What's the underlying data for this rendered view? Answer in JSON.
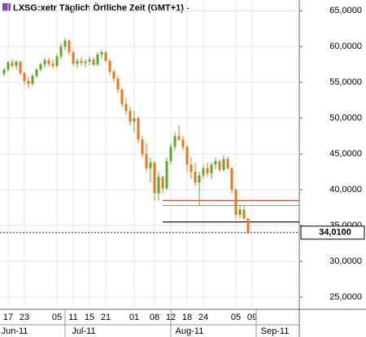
{
  "chart_data": {
    "type": "candlestick",
    "title": "LXSG:xetr Täglich Örtliche Zeit (GMT+1)  -",
    "up_color": "#5aa832",
    "down_color": "#e8761b",
    "ylim": [
      23.3,
      66.5
    ],
    "yticks": [
      {
        "value": 25,
        "label": "25,0000"
      },
      {
        "value": 30,
        "label": "30,0000"
      },
      {
        "value": 35,
        "label": "35,0000"
      },
      {
        "value": 40,
        "label": "40,0000"
      },
      {
        "value": 45,
        "label": "45,0000"
      },
      {
        "value": 50,
        "label": "50,0000"
      },
      {
        "value": 55,
        "label": "55,0000"
      },
      {
        "value": 60,
        "label": "60,0000"
      },
      {
        "value": 65,
        "label": "65,0000"
      }
    ],
    "grid": true,
    "categories": [
      null,
      "17",
      null,
      null,
      null,
      "23",
      null,
      null,
      null,
      null,
      null,
      null,
      null,
      "05",
      null,
      null,
      null,
      "11",
      null,
      null,
      null,
      "15",
      null,
      null,
      null,
      "21",
      null,
      null,
      null,
      null,
      null,
      null,
      "01",
      null,
      null,
      null,
      null,
      "08",
      null,
      null,
      null,
      "12",
      null,
      null,
      null,
      "18",
      null,
      null,
      null,
      "24",
      null,
      null,
      null,
      null,
      null,
      null,
      null,
      "05",
      null,
      null,
      null,
      "09",
      null,
      null,
      null,
      null
    ],
    "months": [
      null,
      "Jun-11",
      null,
      null,
      null,
      null,
      null,
      null,
      null,
      null,
      null,
      null,
      null,
      null,
      null,
      null,
      null,
      null,
      "Jul-11",
      null,
      null,
      null,
      null,
      null,
      null,
      null,
      null,
      null,
      null,
      null,
      null,
      null,
      null,
      null,
      null,
      null,
      null,
      null,
      null,
      null,
      null,
      null,
      null,
      null,
      "Aug-11",
      null,
      null,
      null,
      null,
      null,
      null,
      null,
      null,
      null,
      null,
      null,
      null,
      null,
      null,
      null,
      null,
      null,
      null,
      null,
      null,
      "Sep-11"
    ],
    "ohlc": [
      [
        56.2,
        57.0,
        55.8,
        56.8
      ],
      [
        56.8,
        58.0,
        56.5,
        57.8
      ],
      [
        57.8,
        58.2,
        57.0,
        57.3
      ],
      [
        57.3,
        58.1,
        56.8,
        57.9
      ],
      [
        57.9,
        58.0,
        56.0,
        56.3
      ],
      [
        56.3,
        56.5,
        54.6,
        55.2
      ],
      [
        55.2,
        55.8,
        54.2,
        54.8
      ],
      [
        54.8,
        56.2,
        54.5,
        55.9
      ],
      [
        55.9,
        57.0,
        55.6,
        56.8
      ],
      [
        56.8,
        57.8,
        56.5,
        57.5
      ],
      [
        57.5,
        58.4,
        57.0,
        58.1
      ],
      [
        58.1,
        58.5,
        57.2,
        57.6
      ],
      [
        57.6,
        58.2,
        57.0,
        57.3
      ],
      [
        57.3,
        59.0,
        57.0,
        58.6
      ],
      [
        58.6,
        60.5,
        58.2,
        60.0
      ],
      [
        60.0,
        61.2,
        59.5,
        60.8
      ],
      [
        60.8,
        61.0,
        58.8,
        59.2
      ],
      [
        59.2,
        59.5,
        57.3,
        57.6
      ],
      [
        57.6,
        58.3,
        57.0,
        58.0
      ],
      [
        58.0,
        58.6,
        57.3,
        57.7
      ],
      [
        57.7,
        58.2,
        57.1,
        57.9
      ],
      [
        57.9,
        58.6,
        57.4,
        58.2
      ],
      [
        58.2,
        58.5,
        57.2,
        57.5
      ],
      [
        57.5,
        59.2,
        57.3,
        58.9
      ],
      [
        58.9,
        59.6,
        58.3,
        59.2
      ],
      [
        59.2,
        59.5,
        57.8,
        58.0
      ],
      [
        58.0,
        58.3,
        56.0,
        56.5
      ],
      [
        56.5,
        56.8,
        55.0,
        55.5
      ],
      [
        55.5,
        56.0,
        53.5,
        54.0
      ],
      [
        54.0,
        54.2,
        51.5,
        52.0
      ],
      [
        52.0,
        52.8,
        50.5,
        51.0
      ],
      [
        51.0,
        51.5,
        49.0,
        49.5
      ],
      [
        49.5,
        51.0,
        48.0,
        50.0
      ],
      [
        50.0,
        50.3,
        46.5,
        47.0
      ],
      [
        47.0,
        47.5,
        44.5,
        45.0
      ],
      [
        45.0,
        46.5,
        42.5,
        43.0
      ],
      [
        43.0,
        44.5,
        41.0,
        43.8
      ],
      [
        43.8,
        44.0,
        38.5,
        39.5
      ],
      [
        39.5,
        42.5,
        38.5,
        41.8
      ],
      [
        41.8,
        42.0,
        39.5,
        40.2
      ],
      [
        40.2,
        44.5,
        40.0,
        44.0
      ],
      [
        44.0,
        46.5,
        43.5,
        46.0
      ],
      [
        46.0,
        48.0,
        45.5,
        47.5
      ],
      [
        47.5,
        49.0,
        46.8,
        47.0
      ],
      [
        47.0,
        47.5,
        45.5,
        46.0
      ],
      [
        46.0,
        46.2,
        42.5,
        43.5
      ],
      [
        43.5,
        44.5,
        41.5,
        42.5
      ],
      [
        42.5,
        43.8,
        40.5,
        41.0
      ],
      [
        41.0,
        42.5,
        37.8,
        42.0
      ],
      [
        42.0,
        43.5,
        41.5,
        43.0
      ],
      [
        43.0,
        43.8,
        41.8,
        42.3
      ],
      [
        42.3,
        43.8,
        41.5,
        43.5
      ],
      [
        43.5,
        44.5,
        42.8,
        44.0
      ],
      [
        44.0,
        44.2,
        42.5,
        42.8
      ],
      [
        42.8,
        44.8,
        42.5,
        44.3
      ],
      [
        44.3,
        44.6,
        42.8,
        43.0
      ],
      [
        43.0,
        43.2,
        39.5,
        40.0
      ],
      [
        40.0,
        40.2,
        36.0,
        36.5
      ],
      [
        36.5,
        37.8,
        36.0,
        37.2
      ],
      [
        37.2,
        37.8,
        35.8,
        36.0
      ],
      [
        36.0,
        36.0,
        33.8,
        34.01
      ],
      null,
      null,
      null,
      null,
      null
    ],
    "levels": [
      {
        "value": 38.5,
        "color": "#c0392b"
      },
      {
        "value": 37.8,
        "color": "#999999"
      },
      {
        "value": 35.5,
        "color": "#000000"
      }
    ],
    "last_price": {
      "value": 34.01,
      "label": "34,0100",
      "color": "#cc0000"
    }
  }
}
